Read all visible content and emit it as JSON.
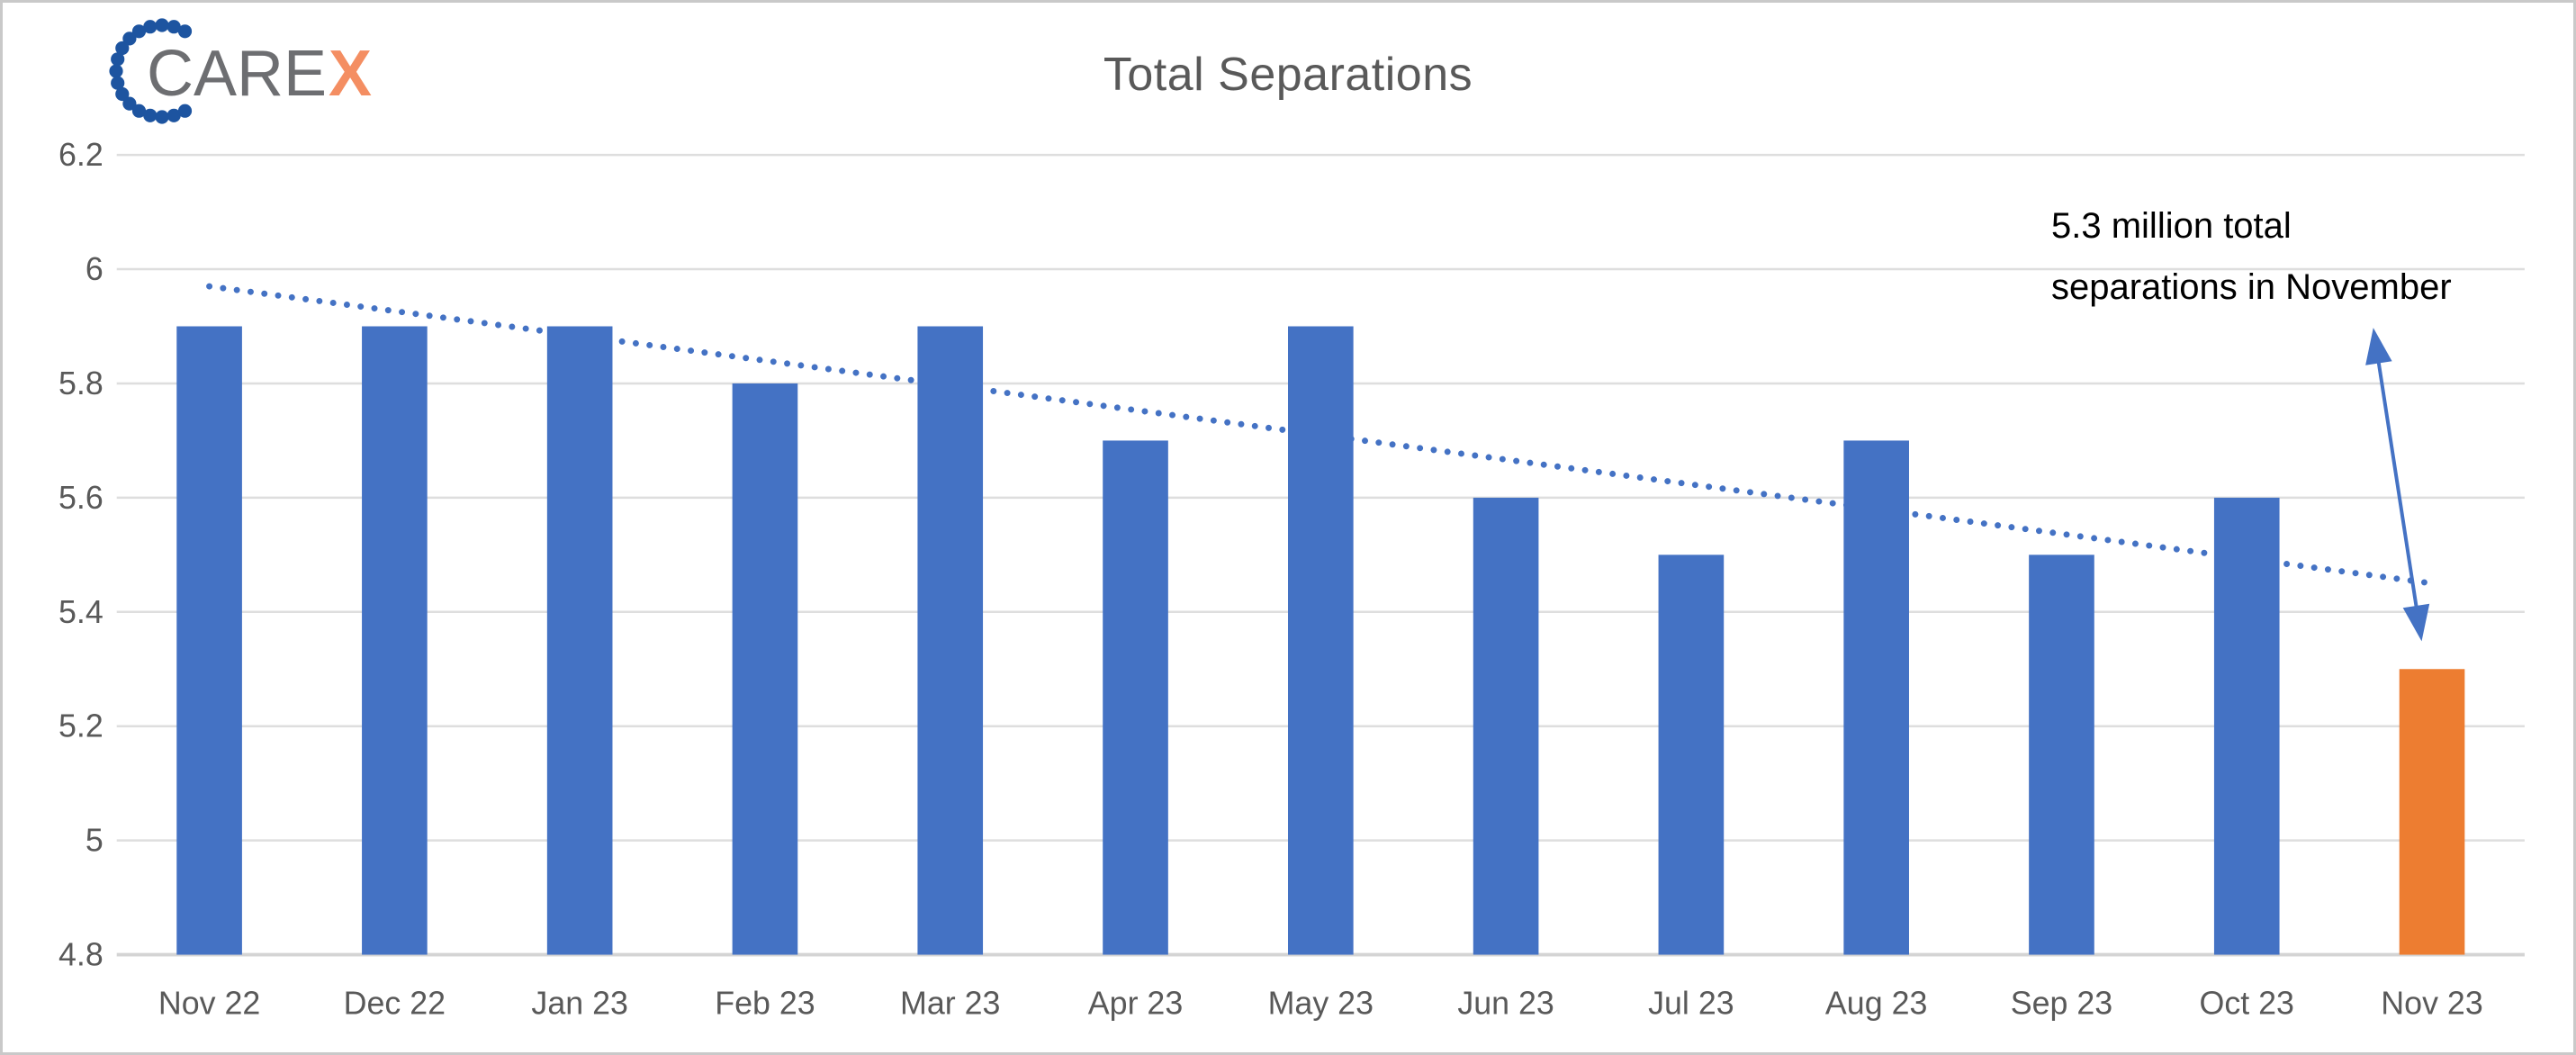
{
  "logo": {
    "text_gray": "CARE",
    "text_accent": "X",
    "dot_color": "#1d54a0",
    "text_gray_color": "#6d6e71",
    "text_accent_color": "#f48e62"
  },
  "chart_data": {
    "type": "bar",
    "title": "Total Separations",
    "categories": [
      "Nov 22",
      "Dec 22",
      "Jan 23",
      "Feb 23",
      "Mar 23",
      "Apr 23",
      "May 23",
      "Jun 23",
      "Jul 23",
      "Aug 23",
      "Sep 23",
      "Oct 23",
      "Nov 23"
    ],
    "values": [
      5.9,
      5.9,
      5.9,
      5.8,
      5.9,
      5.7,
      5.9,
      5.6,
      5.5,
      5.7,
      5.5,
      5.6,
      5.3
    ],
    "unit": "millions",
    "highlight_category": "Nov 23",
    "ylim": [
      4.8,
      6.2
    ],
    "ytick_step": 0.2,
    "ytick_labels": [
      "6.2",
      "6",
      "5.8",
      "5.6",
      "5.4",
      "5.2",
      "5",
      "4.8"
    ],
    "xlabel": "",
    "ylabel": "",
    "grid": true,
    "legend": false,
    "bar_color": "#4472c4",
    "highlight_color": "#ed7d31",
    "gridline_color": "#dedede",
    "axis_line_color": "#d4d4d4",
    "axis_text_color": "#595959",
    "title_color": "#595959",
    "trendline": {
      "style": "dotted",
      "color": "#4472c4",
      "start_value": 5.97,
      "end_value": 5.45
    }
  },
  "annotation": {
    "lines": [
      "5.3 million total",
      "separations in November"
    ],
    "text_color": "#000000",
    "arrow_color": "#4472c4",
    "arrow_target": "Nov 23"
  }
}
